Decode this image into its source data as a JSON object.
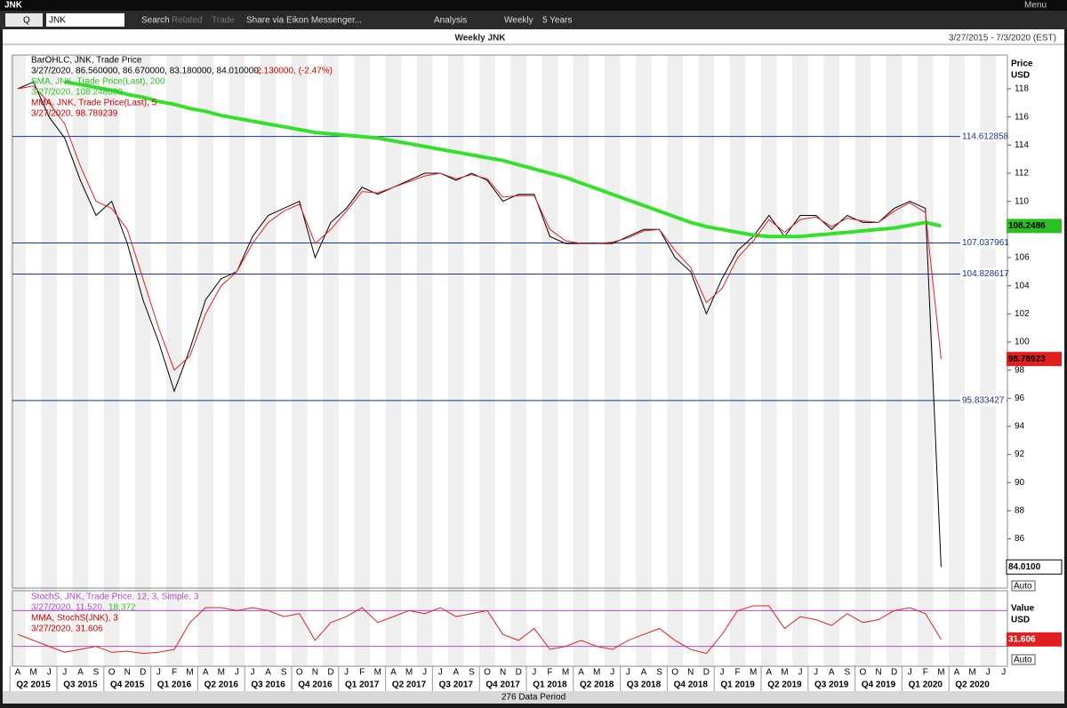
{
  "window": {
    "title": "JNK",
    "menu": "Menu"
  },
  "toolbar": {
    "mode": "Q",
    "symbol": "JNK",
    "search": "Search",
    "related": "Related",
    "trade": "Trade",
    "share": "Share via Eikon Messenger...",
    "analysis": "Analysis",
    "interval": "Weekly",
    "range": "5 Years"
  },
  "status": "276 Data Period",
  "chart_data": {
    "type": "line",
    "title": "Weekly JNK",
    "subtitle": "3/27/2015 - 7/3/2020 (EST)",
    "y_label": [
      "Price",
      "USD"
    ],
    "y2_label": [
      "Value",
      "USD"
    ],
    "auto": "Auto",
    "legend": [
      "BarOHLC, JNK, Trade Price",
      "3/27/2020, 86.560000, 86.670000, 83.180000, 84.010000,",
      "-2.130000, (-2.47%)",
      "SMA, JNK, Trade Price(Last),  200",
      "3/27/2020, 108.248600",
      "MMA, JNK, Trade Price(Last),  5",
      "3/27/2020, 98.789239"
    ],
    "stoch_legend": [
      "StochS, JNK, Trade Price,  12, 3, Simple, 3",
      "3/27/2020, 11.520,",
      "18.372",
      "MMA, StochS(JNK), 3",
      "3/27/2020, 31.606"
    ],
    "axis_boxes": [
      "108.2486",
      "98.78923",
      "84.0100",
      "31.606"
    ],
    "categories": [
      "A",
      "M",
      "J",
      "J",
      "A",
      "S",
      "O",
      "N",
      "D",
      "J",
      "F",
      "M",
      "A",
      "M",
      "J",
      "J",
      "A",
      "S",
      "O",
      "N",
      "D",
      "J",
      "F",
      "M",
      "A",
      "M",
      "J",
      "J",
      "A",
      "S",
      "O",
      "N",
      "D",
      "J",
      "F",
      "M",
      "A",
      "M",
      "J",
      "J",
      "A",
      "S",
      "O",
      "N",
      "D",
      "J",
      "F",
      "M",
      "A",
      "M",
      "J",
      "J",
      "A",
      "S",
      "O",
      "N",
      "D",
      "J",
      "F",
      "M",
      "A",
      "M",
      "J",
      "J"
    ],
    "quarters": [
      "Q2 2015",
      "Q3 2015",
      "Q4 2015",
      "Q1 2016",
      "Q2 2016",
      "Q3 2016",
      "Q4 2016",
      "Q1 2017",
      "Q2 2017",
      "Q3 2017",
      "Q4 2017",
      "Q1 2018",
      "Q2 2018",
      "Q3 2018",
      "Q4 2018",
      "Q1 2019",
      "Q2 2019",
      "Q3 2019",
      "Q4 2019",
      "Q1 2020",
      "Q2 2020"
    ],
    "ylim": [
      82.5,
      120.4
    ],
    "yticks": [
      86,
      88,
      90,
      92,
      94,
      96,
      98,
      100,
      102,
      104,
      106,
      108,
      110,
      112,
      114,
      116,
      118
    ],
    "hlines": [
      114.612858,
      107.037961,
      104.828617,
      95.833427
    ],
    "series": [
      {
        "color": "#000000",
        "values": [
          118,
          118.5,
          116,
          114.5,
          111.5,
          109,
          110,
          107,
          103,
          100,
          96.5,
          99.5,
          103,
          104.5,
          105,
          107.5,
          109,
          109.5,
          110,
          106,
          108.5,
          109.5,
          111,
          110.5,
          111,
          111.5,
          112,
          112,
          111.5,
          112,
          111.5,
          110,
          110.5,
          110.5,
          107.5,
          107,
          107,
          107,
          107,
          107.5,
          108,
          108,
          106,
          105,
          102,
          104.5,
          106.5,
          107.5,
          109,
          107.5,
          109,
          109,
          108,
          109,
          108.5,
          108.5,
          109.5,
          110,
          109.5,
          84,
          null,
          null,
          null,
          null
        ]
      },
      {
        "color": "#33e02a",
        "values": [
          null,
          null,
          null,
          118.5,
          118.3,
          118.1,
          117.9,
          117.6,
          117.4,
          117.1,
          116.9,
          116.6,
          116.4,
          116.1,
          115.9,
          115.7,
          115.5,
          115.3,
          115.1,
          114.9,
          114.8,
          114.7,
          114.6,
          114.5,
          114.3,
          114.1,
          113.9,
          113.7,
          113.5,
          113.3,
          113.1,
          112.9,
          112.6,
          112.3,
          112,
          111.7,
          111.3,
          110.9,
          110.5,
          110.1,
          109.7,
          109.3,
          108.9,
          108.5,
          108.2,
          108,
          107.8,
          107.6,
          107.5,
          107.5,
          107.5,
          107.6,
          107.7,
          107.8,
          107.9,
          108,
          108.1,
          108.3,
          108.5,
          108.2486,
          null,
          null,
          null,
          null
        ]
      },
      {
        "color": "#e02020",
        "values": [
          118,
          118.2,
          117,
          115.5,
          112.5,
          110,
          109.5,
          108,
          104.5,
          101,
          98,
          99,
          102,
          104,
          105,
          107,
          108.5,
          109.3,
          109.8,
          107,
          108,
          109.3,
          110.7,
          110.6,
          111,
          111.4,
          111.8,
          112,
          111.6,
          111.9,
          111.6,
          110.3,
          110.4,
          110.4,
          108,
          107.2,
          107,
          107,
          107.1,
          107.4,
          107.9,
          108,
          106.5,
          105.3,
          102.8,
          103.8,
          106,
          107.2,
          108.7,
          107.8,
          108.7,
          108.9,
          108.2,
          108.8,
          108.6,
          108.5,
          109.3,
          109.9,
          109.2,
          98.789239,
          null,
          null,
          null,
          null
        ]
      },
      {
        "color": "#e02020",
        "axis": "y2",
        "values": [
          40,
          30,
          20,
          10,
          15,
          20,
          10,
          12,
          8,
          10,
          15,
          60,
          85,
          85,
          80,
          85,
          80,
          70,
          75,
          30,
          60,
          70,
          85,
          60,
          70,
          80,
          75,
          85,
          70,
          75,
          80,
          40,
          30,
          50,
          15,
          20,
          30,
          20,
          15,
          30,
          40,
          50,
          30,
          15,
          8,
          40,
          80,
          88,
          88,
          50,
          70,
          65,
          55,
          75,
          60,
          65,
          80,
          85,
          75,
          31.606,
          null,
          null,
          null,
          null
        ]
      }
    ],
    "y2lim": [
      0,
      100
    ],
    "y2_levels": [
      20,
      80
    ]
  }
}
